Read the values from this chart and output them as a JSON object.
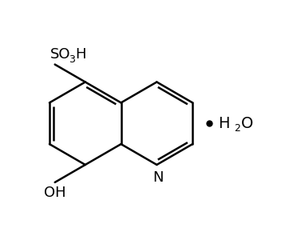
{
  "bg_color": "#ffffff",
  "line_color": "#000000",
  "line_width": 1.8,
  "font_size_label": 13,
  "font_size_subscript": 9,
  "fig_width": 3.77,
  "fig_height": 2.9,
  "dpi": 100,
  "xlim": [
    0,
    10
  ],
  "ylim": [
    0,
    7.7
  ]
}
